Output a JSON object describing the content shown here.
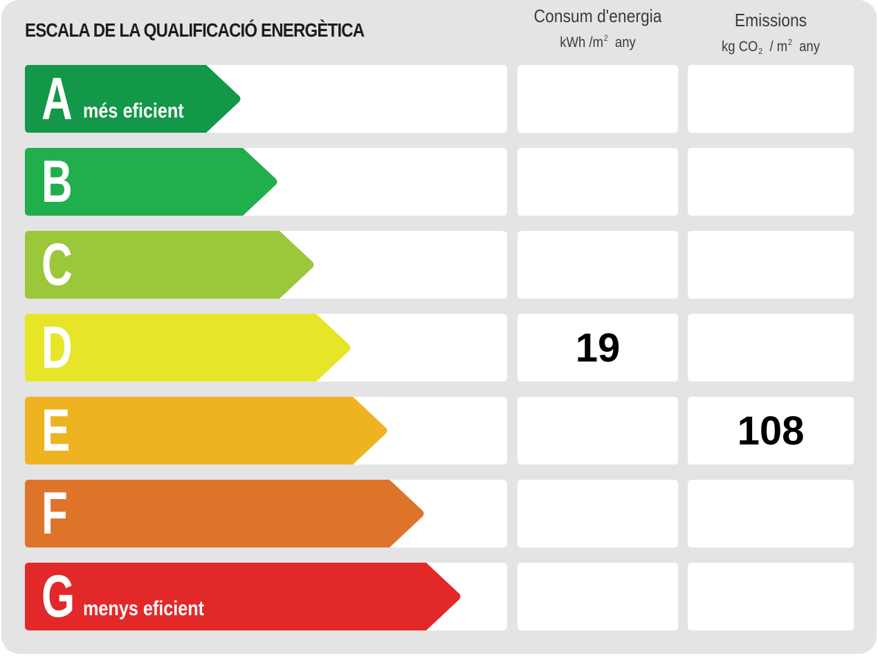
{
  "title": "ESCALA DE LA QUALIFICACIÓ ENERGÈTICA",
  "columns": {
    "consum": {
      "title": "Consum d'energia",
      "unit_a": "kWh /m",
      "unit_sup": "2",
      "unit_b": "any"
    },
    "emissions": {
      "title": "Emissions",
      "unit_a": "kg CO",
      "unit_sub": "2",
      "unit_mid": "/ m",
      "unit_sup": "2",
      "unit_b": "any"
    }
  },
  "classes": [
    {
      "letter": "A",
      "label": "més eficient",
      "color": "#139749"
    },
    {
      "letter": "B",
      "label": "",
      "color": "#21ae4c"
    },
    {
      "letter": "C",
      "label": "",
      "color": "#9bc73b"
    },
    {
      "letter": "D",
      "label": "",
      "color": "#e6e528"
    },
    {
      "letter": "E",
      "label": "",
      "color": "#eeb321"
    },
    {
      "letter": "F",
      "label": "",
      "color": "#de7429"
    },
    {
      "letter": "G",
      "label": "menys eficient",
      "color": "#e3282a"
    }
  ],
  "ratings": {
    "consum": {
      "class": "D",
      "value": "19"
    },
    "emissions": {
      "class": "E",
      "value": "108"
    }
  }
}
